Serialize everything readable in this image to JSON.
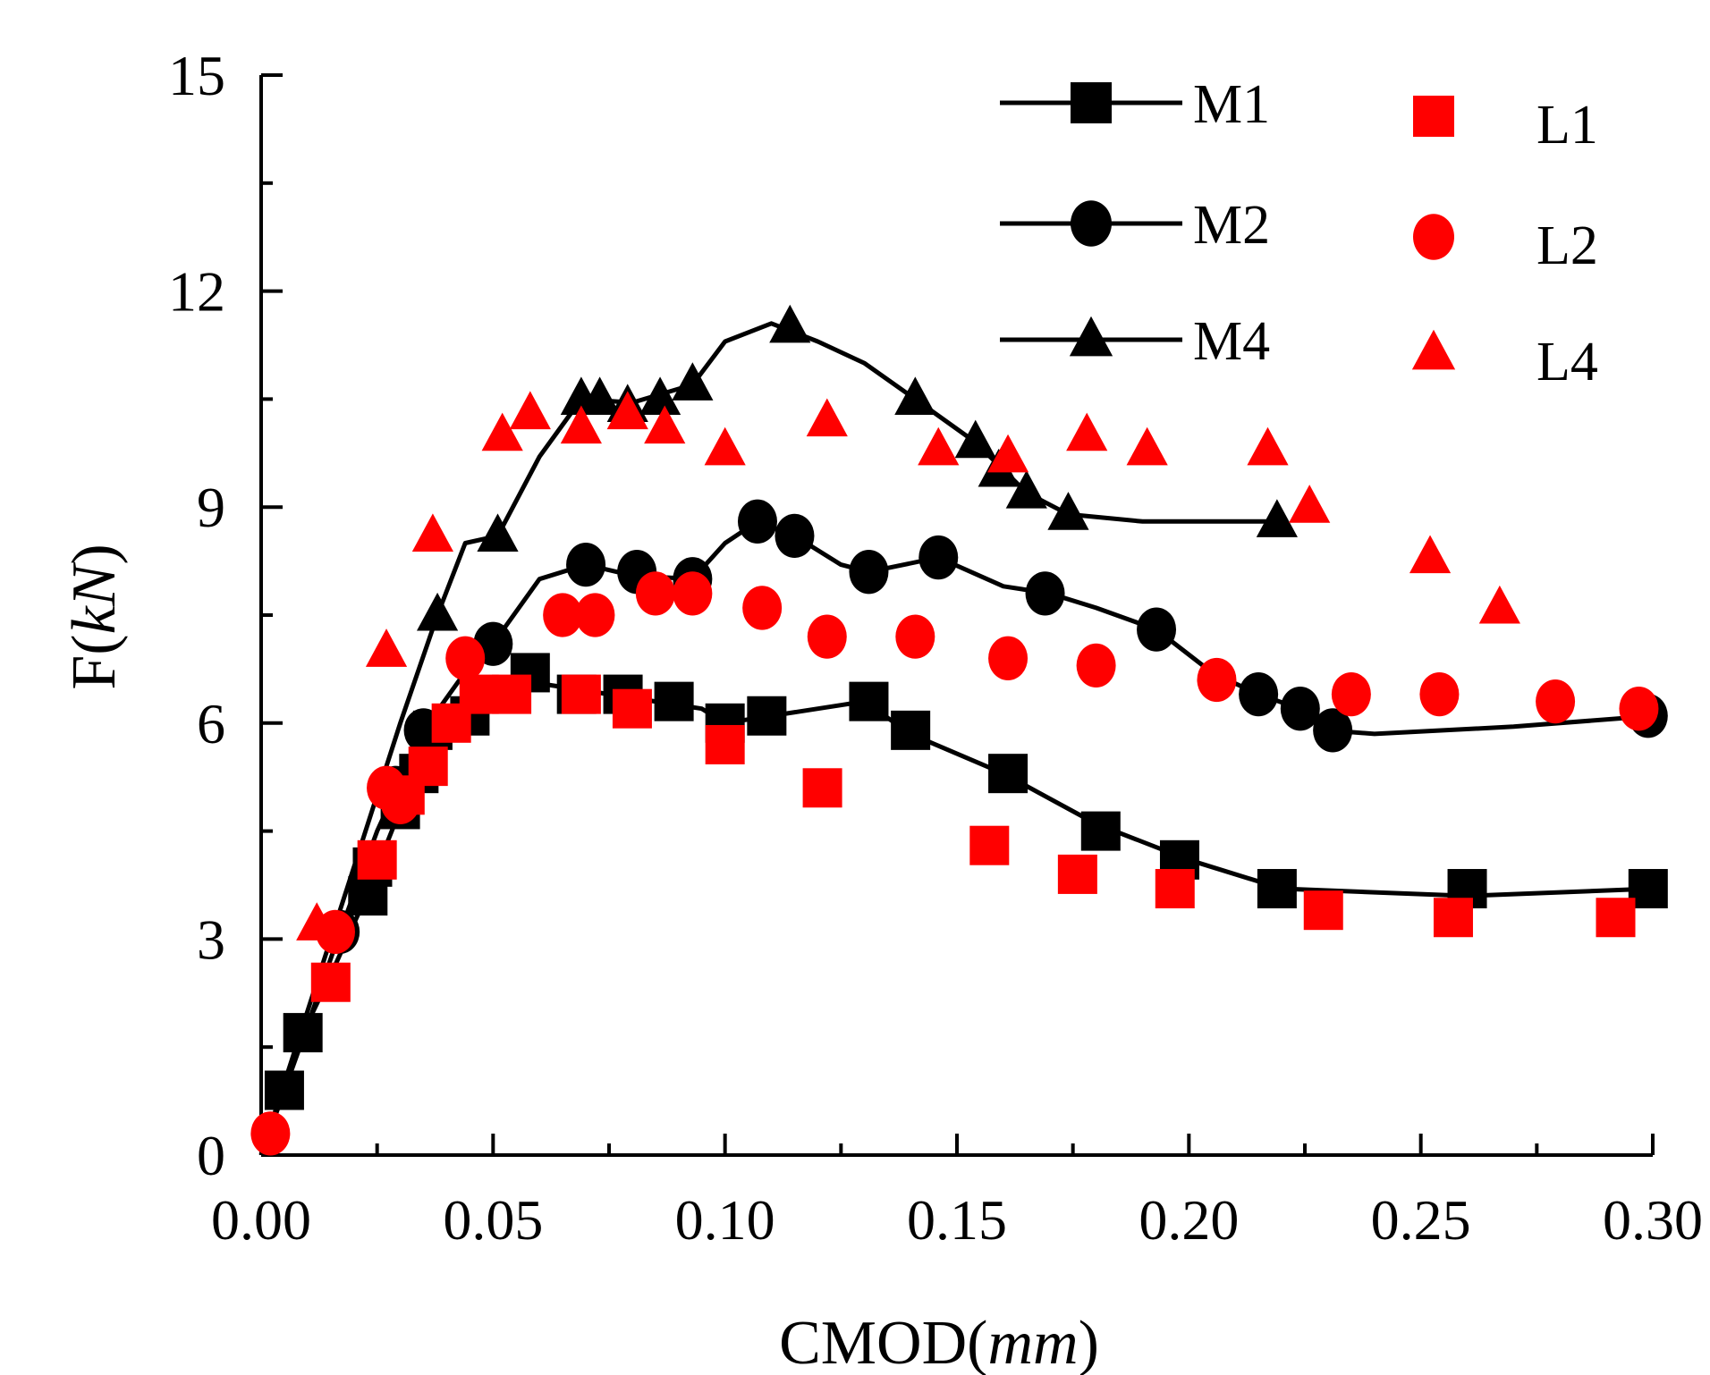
{
  "chart_data": {
    "type": "scatter",
    "title": "",
    "xlabel": {
      "prefix": "CMOD(",
      "italic": "mm",
      "suffix": ")"
    },
    "ylabel": {
      "prefix": "F(",
      "italic": "kN",
      "suffix": ")"
    },
    "xlim": [
      0,
      0.3
    ],
    "ylim": [
      0,
      15
    ],
    "x_ticks": [
      "0.00",
      "0.05",
      "0.10",
      "0.15",
      "0.20",
      "0.25",
      "0.30"
    ],
    "y_ticks": [
      "0",
      "3",
      "6",
      "9",
      "12",
      "15"
    ],
    "grid": false,
    "legend_position": "top-right",
    "series": [
      {
        "name": "M1",
        "marker": "square",
        "color": "#000000",
        "line": true,
        "points": [
          [
            0.005,
            0.9
          ],
          [
            0.009,
            1.7
          ],
          [
            0.023,
            3.6
          ],
          [
            0.024,
            4.0
          ],
          [
            0.03,
            4.8
          ],
          [
            0.034,
            5.3
          ],
          [
            0.037,
            5.9
          ],
          [
            0.045,
            6.1
          ],
          [
            0.058,
            6.7
          ],
          [
            0.068,
            6.4
          ],
          [
            0.078,
            6.4
          ],
          [
            0.089,
            6.3
          ],
          [
            0.1,
            6.0
          ],
          [
            0.109,
            6.1
          ],
          [
            0.131,
            6.3
          ],
          [
            0.14,
            5.9
          ],
          [
            0.161,
            5.3
          ],
          [
            0.181,
            4.5
          ],
          [
            0.198,
            4.1
          ],
          [
            0.219,
            3.7
          ],
          [
            0.26,
            3.7
          ],
          [
            0.299,
            3.7
          ]
        ],
        "curve": [
          [
            0,
            0
          ],
          [
            0.005,
            0.9
          ],
          [
            0.009,
            1.7
          ],
          [
            0.015,
            2.5
          ],
          [
            0.022,
            3.5
          ],
          [
            0.03,
            4.8
          ],
          [
            0.036,
            5.6
          ],
          [
            0.045,
            6.1
          ],
          [
            0.055,
            6.6
          ],
          [
            0.065,
            6.5
          ],
          [
            0.08,
            6.35
          ],
          [
            0.095,
            6.2
          ],
          [
            0.1,
            6.0
          ],
          [
            0.11,
            6.1
          ],
          [
            0.125,
            6.25
          ],
          [
            0.13,
            6.3
          ],
          [
            0.14,
            5.85
          ],
          [
            0.16,
            5.3
          ],
          [
            0.18,
            4.6
          ],
          [
            0.2,
            4.1
          ],
          [
            0.22,
            3.7
          ],
          [
            0.24,
            3.65
          ],
          [
            0.26,
            3.6
          ],
          [
            0.3,
            3.7
          ]
        ]
      },
      {
        "name": "M2",
        "marker": "circle",
        "color": "#000000",
        "line": true,
        "points": [
          [
            0.017,
            3.1
          ],
          [
            0.029,
            5.1
          ],
          [
            0.035,
            5.9
          ],
          [
            0.05,
            7.1
          ],
          [
            0.07,
            8.2
          ],
          [
            0.081,
            8.1
          ],
          [
            0.093,
            8.0
          ],
          [
            0.107,
            8.8
          ],
          [
            0.115,
            8.6
          ],
          [
            0.131,
            8.1
          ],
          [
            0.146,
            8.3
          ],
          [
            0.169,
            7.8
          ],
          [
            0.193,
            7.3
          ],
          [
            0.215,
            6.4
          ],
          [
            0.224,
            6.2
          ],
          [
            0.231,
            5.9
          ],
          [
            0.299,
            6.1
          ]
        ],
        "curve": [
          [
            0,
            0
          ],
          [
            0.01,
            1.8
          ],
          [
            0.017,
            3.1
          ],
          [
            0.025,
            4.5
          ],
          [
            0.03,
            5.2
          ],
          [
            0.035,
            5.9
          ],
          [
            0.045,
            6.8
          ],
          [
            0.05,
            7.1
          ],
          [
            0.06,
            8.0
          ],
          [
            0.07,
            8.2
          ],
          [
            0.08,
            8.05
          ],
          [
            0.093,
            8.0
          ],
          [
            0.1,
            8.5
          ],
          [
            0.107,
            8.8
          ],
          [
            0.115,
            8.6
          ],
          [
            0.125,
            8.2
          ],
          [
            0.131,
            8.1
          ],
          [
            0.146,
            8.3
          ],
          [
            0.16,
            7.9
          ],
          [
            0.17,
            7.8
          ],
          [
            0.18,
            7.6
          ],
          [
            0.193,
            7.3
          ],
          [
            0.205,
            6.7
          ],
          [
            0.215,
            6.4
          ],
          [
            0.224,
            6.2
          ],
          [
            0.23,
            5.9
          ],
          [
            0.24,
            5.85
          ],
          [
            0.27,
            5.95
          ],
          [
            0.3,
            6.1
          ]
        ]
      },
      {
        "name": "M4",
        "marker": "triangle",
        "color": "#000000",
        "line": true,
        "points": [
          [
            0.038,
            7.5
          ],
          [
            0.051,
            8.6
          ],
          [
            0.069,
            10.5
          ],
          [
            0.073,
            10.5
          ],
          [
            0.079,
            10.4
          ],
          [
            0.086,
            10.5
          ],
          [
            0.093,
            10.7
          ],
          [
            0.114,
            11.5
          ],
          [
            0.141,
            10.5
          ],
          [
            0.154,
            9.9
          ],
          [
            0.159,
            9.5
          ],
          [
            0.165,
            9.2
          ],
          [
            0.174,
            8.9
          ],
          [
            0.219,
            8.8
          ]
        ],
        "curve": [
          [
            0,
            0
          ],
          [
            0.015,
            3.0
          ],
          [
            0.03,
            6.0
          ],
          [
            0.038,
            7.5
          ],
          [
            0.044,
            8.5
          ],
          [
            0.051,
            8.6
          ],
          [
            0.06,
            9.7
          ],
          [
            0.069,
            10.5
          ],
          [
            0.08,
            10.45
          ],
          [
            0.093,
            10.7
          ],
          [
            0.1,
            11.3
          ],
          [
            0.11,
            11.55
          ],
          [
            0.12,
            11.3
          ],
          [
            0.13,
            11.0
          ],
          [
            0.141,
            10.5
          ],
          [
            0.154,
            9.9
          ],
          [
            0.165,
            9.2
          ],
          [
            0.174,
            8.9
          ],
          [
            0.19,
            8.8
          ],
          [
            0.219,
            8.8
          ]
        ]
      },
      {
        "name": "L1",
        "marker": "square",
        "color": "#ff0000",
        "line": false,
        "points": [
          [
            0.015,
            2.4
          ],
          [
            0.025,
            4.1
          ],
          [
            0.031,
            5.0
          ],
          [
            0.036,
            5.4
          ],
          [
            0.041,
            6.0
          ],
          [
            0.047,
            6.4
          ],
          [
            0.054,
            6.4
          ],
          [
            0.069,
            6.4
          ],
          [
            0.08,
            6.2
          ],
          [
            0.1,
            5.7
          ],
          [
            0.121,
            5.1
          ],
          [
            0.157,
            4.3
          ],
          [
            0.176,
            3.9
          ],
          [
            0.197,
            3.7
          ],
          [
            0.229,
            3.4
          ],
          [
            0.257,
            3.3
          ],
          [
            0.292,
            3.3
          ]
        ]
      },
      {
        "name": "L2",
        "marker": "circle",
        "color": "#ff0000",
        "line": false,
        "points": [
          [
            0.002,
            0.3
          ],
          [
            0.016,
            3.1
          ],
          [
            0.027,
            5.1
          ],
          [
            0.03,
            4.9
          ],
          [
            0.044,
            6.9
          ],
          [
            0.065,
            7.5
          ],
          [
            0.072,
            7.5
          ],
          [
            0.085,
            7.8
          ],
          [
            0.093,
            7.8
          ],
          [
            0.108,
            7.6
          ],
          [
            0.122,
            7.2
          ],
          [
            0.141,
            7.2
          ],
          [
            0.161,
            6.9
          ],
          [
            0.18,
            6.8
          ],
          [
            0.206,
            6.6
          ],
          [
            0.235,
            6.4
          ],
          [
            0.254,
            6.4
          ],
          [
            0.279,
            6.3
          ],
          [
            0.297,
            6.2
          ]
        ]
      },
      {
        "name": "L4",
        "marker": "triangle",
        "color": "#ff0000",
        "line": false,
        "points": [
          [
            0.012,
            3.2
          ],
          [
            0.027,
            7.0
          ],
          [
            0.037,
            8.6
          ],
          [
            0.052,
            10.0
          ],
          [
            0.058,
            10.3
          ],
          [
            0.069,
            10.1
          ],
          [
            0.079,
            10.3
          ],
          [
            0.087,
            10.1
          ],
          [
            0.1,
            9.8
          ],
          [
            0.122,
            10.2
          ],
          [
            0.146,
            9.8
          ],
          [
            0.161,
            9.7
          ],
          [
            0.178,
            10.0
          ],
          [
            0.191,
            9.8
          ],
          [
            0.217,
            9.8
          ],
          [
            0.226,
            9.0
          ],
          [
            0.252,
            8.3
          ],
          [
            0.267,
            7.6
          ]
        ]
      }
    ]
  }
}
